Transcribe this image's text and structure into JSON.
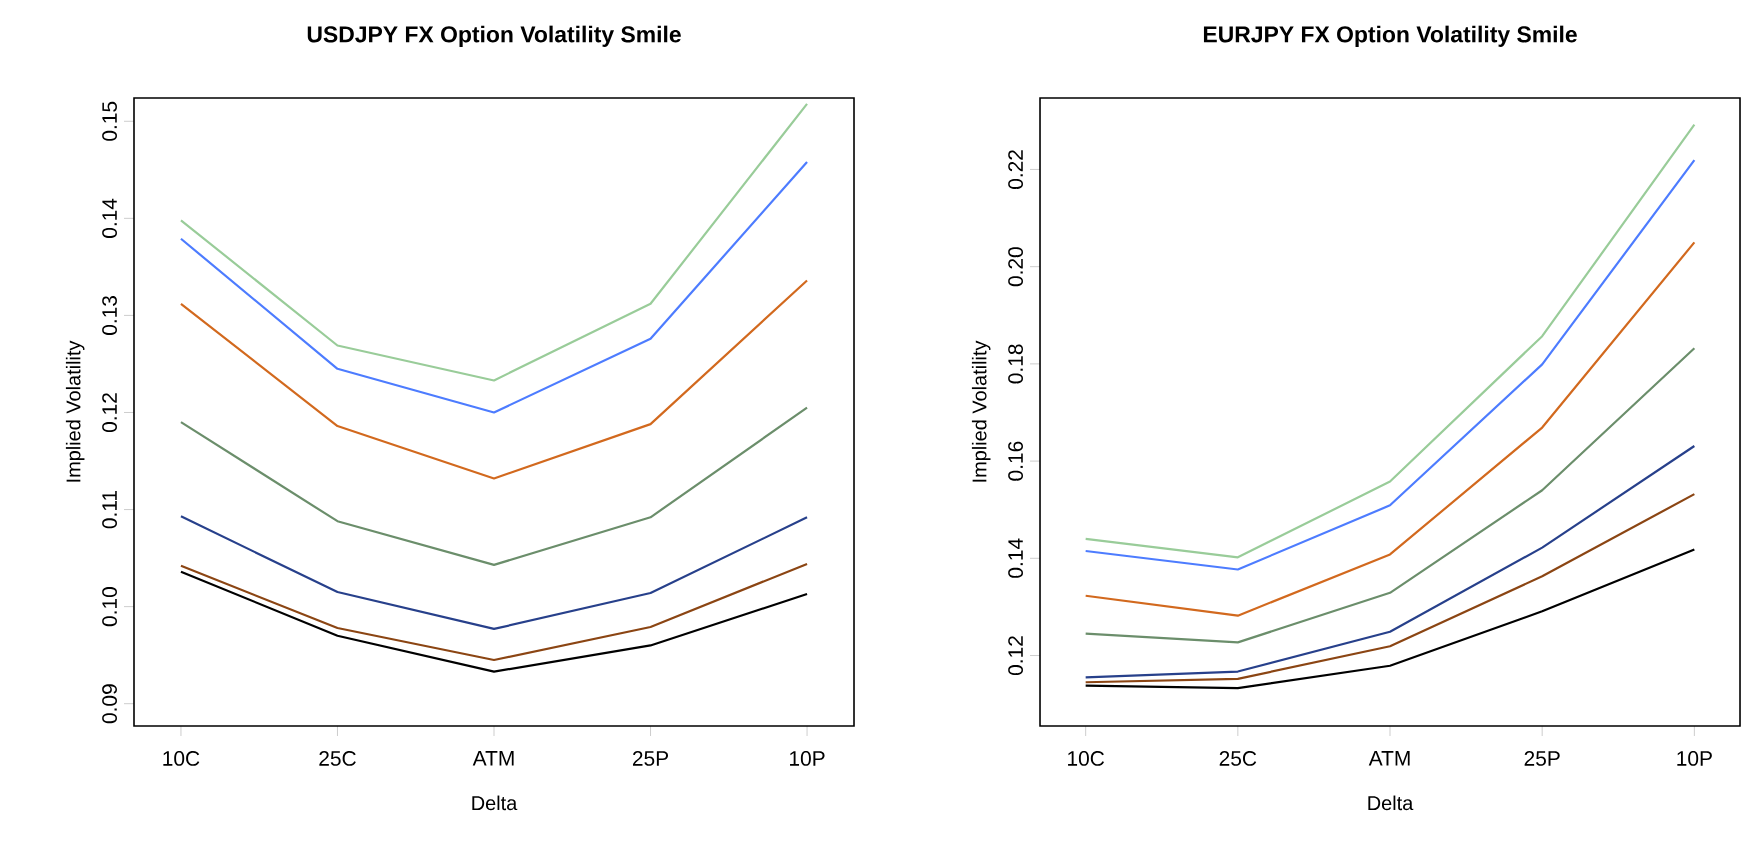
{
  "chart_data": [
    {
      "type": "line",
      "title": "USDJPY FX Option Volatility Smile",
      "xlabel": "Delta",
      "ylabel": "Implied Volatility",
      "categories": [
        "10C",
        "25C",
        "ATM",
        "25P",
        "10P"
      ],
      "ylim": [
        0.0877,
        0.1524
      ],
      "yticks": [
        0.09,
        {
          "value": 0.1,
          "label": "0.10"
        },
        0.11,
        0.12,
        0.13,
        0.14,
        0.15
      ],
      "series": [
        {
          "color": "#99cc99",
          "values": [
            0.1398,
            0.1269,
            0.1233,
            0.1312,
            0.1518
          ]
        },
        {
          "color": "#4d7cff",
          "values": [
            0.1379,
            0.1245,
            0.12,
            0.1276,
            0.1458
          ]
        },
        {
          "color": "#d2691e",
          "values": [
            0.1312,
            0.1186,
            0.1132,
            0.1188,
            0.1336
          ]
        },
        {
          "color": "#6b8e6b",
          "values": [
            0.119,
            0.1088,
            0.1043,
            0.1092,
            0.1205
          ]
        },
        {
          "color": "#27408b",
          "values": [
            0.1093,
            0.1015,
            0.0977,
            0.1014,
            0.1092
          ]
        },
        {
          "color": "#8b4513",
          "values": [
            0.1042,
            0.0978,
            0.0945,
            0.0979,
            0.1044
          ]
        },
        {
          "color": "#000000",
          "values": [
            0.1036,
            0.097,
            0.0933,
            0.096,
            0.1013
          ]
        }
      ]
    },
    {
      "type": "line",
      "title": "EURJPY FX Option Volatility Smile",
      "xlabel": "Delta",
      "ylabel": "Implied Volatility",
      "categories": [
        "10C",
        "25C",
        "ATM",
        "25P",
        "10P"
      ],
      "ylim": [
        0.1055,
        0.2347
      ],
      "yticks": [
        0.12,
        0.14,
        0.16,
        0.18,
        {
          "value": 0.2,
          "label": "0.20"
        },
        0.22
      ],
      "series": [
        {
          "color": "#99cc99",
          "values": [
            0.144,
            0.1402,
            0.1558,
            0.1857,
            0.2292
          ]
        },
        {
          "color": "#4d7cff",
          "values": [
            0.1415,
            0.1377,
            0.1509,
            0.1799,
            0.2219
          ]
        },
        {
          "color": "#d2691e",
          "values": [
            0.1323,
            0.1282,
            0.1408,
            0.1669,
            0.205
          ]
        },
        {
          "color": "#6b8e6b",
          "values": [
            0.1245,
            0.1227,
            0.1329,
            0.154,
            0.1832
          ]
        },
        {
          "color": "#27408b",
          "values": [
            0.1155,
            0.1167,
            0.1249,
            0.1422,
            0.1631
          ]
        },
        {
          "color": "#8b4513",
          "values": [
            0.1145,
            0.1152,
            0.1219,
            0.1363,
            0.1532
          ]
        },
        {
          "color": "#000000",
          "values": [
            0.1138,
            0.1133,
            0.1179,
            0.1291,
            0.1418
          ]
        }
      ]
    }
  ]
}
